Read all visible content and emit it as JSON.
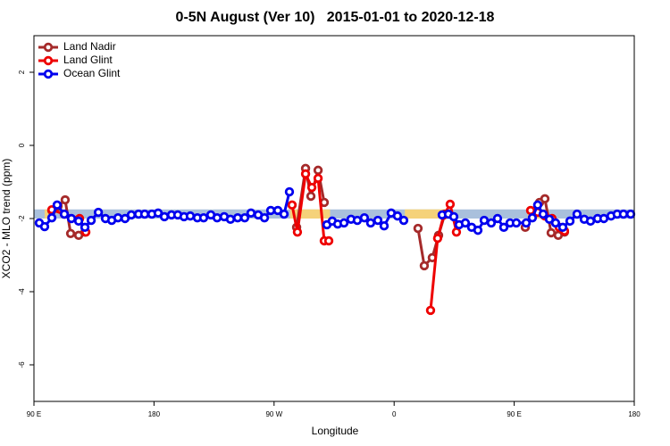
{
  "chart_data": {
    "type": "line",
    "title": "0-5N August (Ver 10)   2015-01-01 to 2020-12-18",
    "x_label": "Longitude",
    "y_label": "XCO2 - MLO trend (ppm)",
    "xlim": [
      90,
      540
    ],
    "xticks": [
      {
        "value": 90,
        "label": "90 E"
      },
      {
        "value": 180,
        "label": "180"
      },
      {
        "value": 270,
        "label": "90 W"
      },
      {
        "value": 360,
        "label": "0"
      },
      {
        "value": 450,
        "label": "90 E"
      },
      {
        "value": 540,
        "label": "180"
      }
    ],
    "ylim": [
      -7,
      3
    ],
    "yticks": [
      -6,
      -4,
      -2,
      0,
      2
    ],
    "grid": false,
    "legend": "top-left",
    "bands": [
      {
        "color": "#a9c0dc",
        "x": [
          90,
          540
        ],
        "y": [
          -2.0,
          -1.75
        ]
      },
      {
        "color": "#f5d27a",
        "x": [
          98,
          106
        ],
        "y": [
          -2.0,
          -1.75
        ]
      },
      {
        "color": "#f5d27a",
        "x": [
          282,
          312
        ],
        "y": [
          -2.0,
          -1.75
        ]
      },
      {
        "color": "#f5d27a",
        "x": [
          368,
          401
        ],
        "y": [
          -2.0,
          -1.75
        ]
      },
      {
        "color": "#f5d27a",
        "x": [
          460,
          476
        ],
        "y": [
          -2.0,
          -1.75
        ]
      }
    ],
    "series": [
      {
        "name": "Land Nadir",
        "color": "#a52a2a",
        "x": [
          103.4,
          108.1,
          113.4,
          117.5,
          123.5,
          128.2,
          null,
          286.9,
          293.6,
          297.6,
          303,
          307.6,
          null,
          377.9,
          382.6,
          388.6,
          393.3,
          398,
          null,
          458.3,
          464.3,
          469,
          473,
          477.7,
          483,
          487.7
        ],
        "values": [
          -1.78,
          -1.66,
          -1.49,
          -2.41,
          -2.46,
          -2.37,
          null,
          -2.24,
          -0.63,
          -1.39,
          -0.68,
          -1.56,
          null,
          -2.27,
          -3.29,
          -3.07,
          -2.46,
          -1.88,
          null,
          -2.24,
          -1.8,
          -1.56,
          -1.46,
          -2.39,
          -2.46,
          -2.37
        ]
      },
      {
        "name": "Land Glint",
        "color": "#ee0000",
        "x": [
          103.4,
          112.8,
          124.2,
          128.9,
          null,
          283.5,
          287.5,
          293.6,
          298.3,
          303,
          307.6,
          311,
          null,
          387.3,
          392.6,
          397.3,
          402,
          406.7,
          null,
          462.3,
          467.6,
          473,
          478.4,
          483.7,
          487.7
        ],
        "values": [
          -1.76,
          -1.88,
          -2.0,
          -2.37,
          null,
          -1.63,
          -2.37,
          -0.78,
          -1.15,
          -0.9,
          -2.61,
          -2.61,
          null,
          -4.51,
          -2.54,
          -1.9,
          -1.61,
          -2.37,
          null,
          -1.78,
          -1.83,
          -1.93,
          -2.0,
          -2.24,
          -2.34
        ]
      },
      {
        "name": "Ocean Glint",
        "color": "#0000ee",
        "x": [
          94,
          98,
          103.4,
          107.4,
          112.8,
          118.1,
          123.5,
          128.2,
          132.9,
          138.3,
          143.6,
          148.3,
          153,
          158.3,
          163,
          168.4,
          173,
          178.4,
          183.1,
          187.8,
          193.1,
          197.8,
          202.5,
          207.2,
          212.5,
          217.2,
          222.6,
          227.3,
          232.6,
          237.3,
          242.7,
          248,
          252.7,
          258.1,
          262.8,
          267.5,
          272.8,
          277.5,
          281.5,
          null,
          309.6,
          313.6,
          317.7,
          322.4,
          327.7,
          332.4,
          337.7,
          342.4,
          347.8,
          352.5,
          357.8,
          362.5,
          367.2,
          null,
          396,
          400.7,
          404.7,
          408.7,
          413.4,
          418.1,
          422.8,
          427.5,
          432.8,
          437.5,
          442.2,
          446.9,
          451.6,
          459,
          463.6,
          467.6,
          471.7,
          476.4,
          481,
          486.4,
          491.8,
          497.1,
          502.5,
          507.2,
          512.5,
          517.2,
          522.6,
          527.2,
          531.9,
          537.3
        ],
        "values": [
          -2.12,
          -2.22,
          -1.98,
          -1.63,
          -1.88,
          -2.0,
          -2.07,
          -2.24,
          -2.05,
          -1.83,
          -2.0,
          -2.05,
          -1.98,
          -2.0,
          -1.9,
          -1.88,
          -1.88,
          -1.88,
          -1.85,
          -1.95,
          -1.9,
          -1.9,
          -1.95,
          -1.93,
          -1.98,
          -1.98,
          -1.9,
          -1.98,
          -1.95,
          -2.02,
          -1.98,
          -1.98,
          -1.85,
          -1.9,
          -1.98,
          -1.78,
          -1.78,
          -1.88,
          -1.27,
          null,
          -2.17,
          -2.07,
          -2.15,
          -2.12,
          -2.02,
          -2.05,
          -1.98,
          -2.12,
          -2.05,
          -2.2,
          -1.85,
          -1.93,
          -2.05,
          null,
          -1.9,
          -1.88,
          -1.95,
          -2.17,
          -2.12,
          -2.24,
          -2.32,
          -2.05,
          -2.12,
          -2.0,
          -2.24,
          -2.12,
          -2.12,
          -2.12,
          -1.98,
          -1.63,
          -1.88,
          -2.02,
          -2.12,
          -2.24,
          -2.07,
          -1.88,
          -2.02,
          -2.07,
          -2.0,
          -2.0,
          -1.93,
          -1.88,
          -1.88,
          -1.88
        ]
      }
    ]
  }
}
